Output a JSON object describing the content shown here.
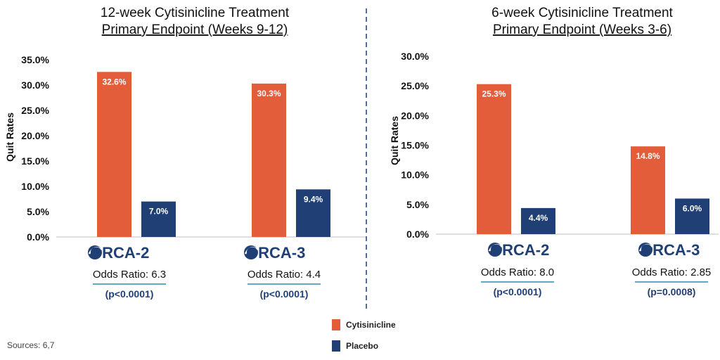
{
  "colors": {
    "cytisinicline": "#e35d3b",
    "placebo": "#1f3f75",
    "divider": "#1f3f75",
    "text": "#111111"
  },
  "sources": "Sources: 6,7",
  "chart_data": [
    {
      "type": "bar",
      "title": "12-week Cytisinicline Treatment",
      "subtitle": "Primary Endpoint (Weeks 9-12)",
      "ylabel": "Quit Rates",
      "ylim": [
        0,
        35
      ],
      "yticks": [
        "0.0%",
        "5.0%",
        "10.0%",
        "15.0%",
        "20.0%",
        "25.0%",
        "30.0%",
        "35.0%"
      ],
      "categories": [
        "ORCA-2",
        "ORCA-3"
      ],
      "series": [
        {
          "name": "Cytisinicline",
          "values": [
            32.6,
            30.3
          ],
          "labels": [
            "32.6%",
            "30.3%"
          ]
        },
        {
          "name": "Placebo",
          "values": [
            7.0,
            9.4
          ],
          "labels": [
            "7.0%",
            "9.4%"
          ]
        }
      ],
      "odds_ratios": [
        "Odds Ratio: 6.3",
        "Odds Ratio: 4.4"
      ],
      "p_values": [
        "(p<0.0001)",
        "(p<0.0001)"
      ]
    },
    {
      "type": "bar",
      "title": "6-week Cytisinicline Treatment",
      "subtitle": "Primary Endpoint (Weeks 3-6)",
      "ylabel": "Quit Rates",
      "ylim": [
        0,
        30
      ],
      "yticks": [
        "0.0%",
        "5.0%",
        "10.0%",
        "15.0%",
        "20.0%",
        "25.0%",
        "30.0%"
      ],
      "categories": [
        "ORCA-2",
        "ORCA-3"
      ],
      "series": [
        {
          "name": "Cytisinicline",
          "values": [
            25.3,
            14.8
          ],
          "labels": [
            "25.3%",
            "14.8%"
          ]
        },
        {
          "name": "Placebo",
          "values": [
            4.4,
            6.0
          ],
          "labels": [
            "4.4%",
            "6.0%"
          ]
        }
      ],
      "odds_ratios": [
        "Odds Ratio: 8.0",
        "Odds Ratio: 2.85"
      ],
      "p_values": [
        "(p<0.0001)",
        "(p=0.0008)"
      ]
    }
  ],
  "legend": [
    {
      "label": "Cytisinicline",
      "color": "#e35d3b"
    },
    {
      "label": "Placebo",
      "color": "#1f3f75"
    }
  ]
}
